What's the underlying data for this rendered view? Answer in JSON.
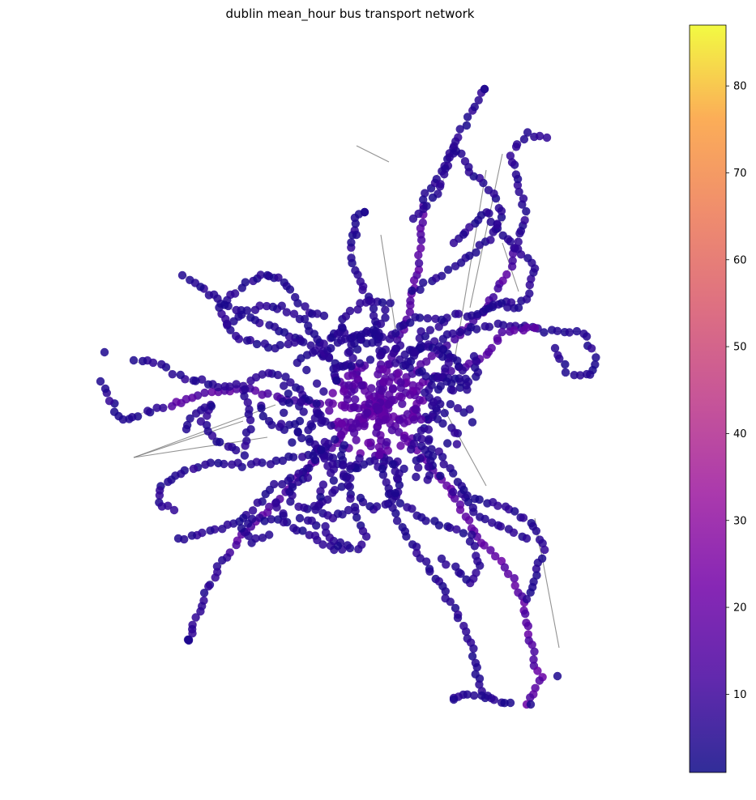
{
  "chart_data": {
    "type": "scatter",
    "title": "dublin mean_hour bus transport network",
    "xlabel": "",
    "ylabel": "",
    "axes_visible": false,
    "grid": false,
    "legend": "none",
    "colorbar": {
      "position": "right",
      "colormap": "plasma",
      "range": [
        1,
        87
      ],
      "ticks": [
        10,
        20,
        30,
        40,
        50,
        60,
        70,
        80
      ],
      "tick_labels": [
        "10",
        "20",
        "30",
        "40",
        "50",
        "60",
        "70",
        "80"
      ]
    },
    "node_color_typical": "#2a0a9a",
    "edge_color": "#808080",
    "approx_value_distribution": {
      "majority_range": [
        1,
        10
      ],
      "central_corridors_range": [
        12,
        22
      ],
      "max_observed": 87
    }
  }
}
